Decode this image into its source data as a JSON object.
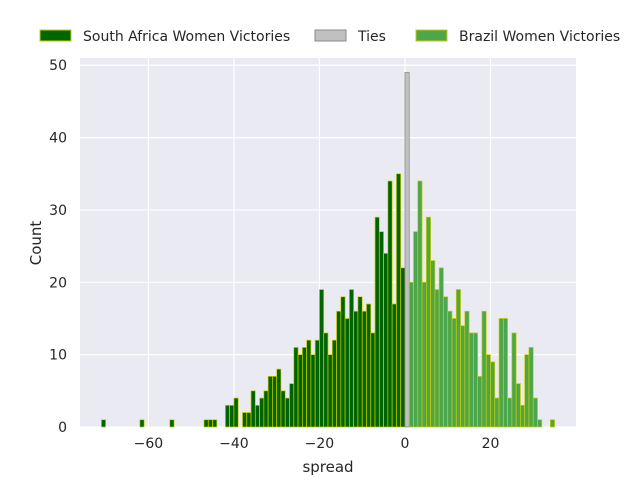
{
  "chart_data": {
    "type": "bar",
    "xlabel": "spread",
    "ylabel": "Count",
    "xlim": [
      -76,
      40
    ],
    "ylim": [
      0,
      51
    ],
    "xticks": [
      -60,
      -40,
      -20,
      0,
      20
    ],
    "yticks": [
      0,
      10,
      20,
      30,
      40,
      50
    ],
    "grid": true,
    "legend_position": "top",
    "bin_width": 1,
    "series": [
      {
        "name": "South Africa Women Victories",
        "color": "#006400",
        "edgecolor": "#cccc00",
        "x": [
          -71,
          -62,
          -55,
          -47,
          -46,
          -45,
          -42,
          -41,
          -40,
          -38,
          -37,
          -36,
          -35,
          -34,
          -33,
          -32,
          -31,
          -30,
          -29,
          -28,
          -27,
          -26,
          -25,
          -24,
          -23,
          -22,
          -21,
          -20,
          -19,
          -18,
          -17,
          -16,
          -15,
          -14,
          -13,
          -12,
          -11,
          -10,
          -9,
          -8,
          -7,
          -6,
          -5,
          -4,
          -3,
          -2,
          -1
        ],
        "values": [
          1,
          1,
          1,
          1,
          1,
          1,
          3,
          3,
          4,
          2,
          2,
          5,
          3,
          4,
          5,
          7,
          7,
          8,
          5,
          4,
          6,
          11,
          10,
          11,
          12,
          10,
          12,
          19,
          13,
          10,
          12,
          16,
          18,
          15,
          19,
          16,
          18,
          16,
          17,
          13,
          29,
          27,
          24,
          34,
          17,
          35,
          22
        ]
      },
      {
        "name": "Ties",
        "color": "#c0c0c0",
        "edgecolor": "#888888",
        "x": [
          0
        ],
        "values": [
          49
        ]
      },
      {
        "name": "Brazil Women Victories",
        "color": "#4ca64c",
        "edgecolor": "#cccc00",
        "x": [
          1,
          2,
          3,
          4,
          5,
          6,
          7,
          8,
          9,
          10,
          11,
          12,
          13,
          14,
          15,
          16,
          17,
          18,
          19,
          20,
          21,
          22,
          23,
          24,
          25,
          26,
          27,
          28,
          29,
          30,
          31,
          34
        ],
        "values": [
          20,
          27,
          34,
          20,
          29,
          23,
          19,
          22,
          18,
          16,
          15,
          19,
          14,
          16,
          13,
          13,
          7,
          16,
          10,
          9,
          4,
          15,
          15,
          4,
          13,
          6,
          3,
          10,
          11,
          4,
          1,
          1
        ]
      }
    ]
  }
}
